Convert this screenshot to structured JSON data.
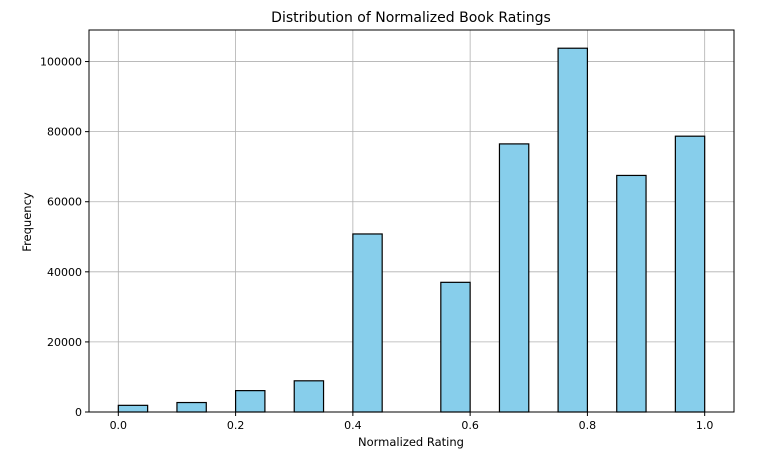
{
  "chart_data": {
    "type": "bar",
    "title": "Distribution of Normalized Book Ratings",
    "xlabel": "Normalized Rating",
    "ylabel": "Frequency",
    "xlim": [
      -0.05,
      1.05
    ],
    "ylim": [
      0,
      109000
    ],
    "xticks": [
      0.0,
      0.2,
      0.4,
      0.6,
      0.8,
      1.0
    ],
    "xtick_labels": [
      "0.0",
      "0.2",
      "0.4",
      "0.6",
      "0.8",
      "1.0"
    ],
    "yticks": [
      0,
      20000,
      40000,
      60000,
      80000,
      100000
    ],
    "ytick_labels": [
      "0",
      "20000",
      "40000",
      "60000",
      "80000",
      "100000"
    ],
    "grid": true,
    "bar_color": "#87CEEB",
    "edge_color": "#000000",
    "bins": [
      {
        "start": 0.0,
        "end": 0.05,
        "value": 1900
      },
      {
        "start": 0.1,
        "end": 0.15,
        "value": 2700
      },
      {
        "start": 0.2,
        "end": 0.25,
        "value": 6100
      },
      {
        "start": 0.3,
        "end": 0.35,
        "value": 8900
      },
      {
        "start": 0.4,
        "end": 0.45,
        "value": 50800
      },
      {
        "start": 0.55,
        "end": 0.6,
        "value": 37000
      },
      {
        "start": 0.65,
        "end": 0.7,
        "value": 76500
      },
      {
        "start": 0.75,
        "end": 0.8,
        "value": 103800
      },
      {
        "start": 0.85,
        "end": 0.9,
        "value": 67500
      },
      {
        "start": 0.95,
        "end": 1.0,
        "value": 78700
      }
    ]
  }
}
